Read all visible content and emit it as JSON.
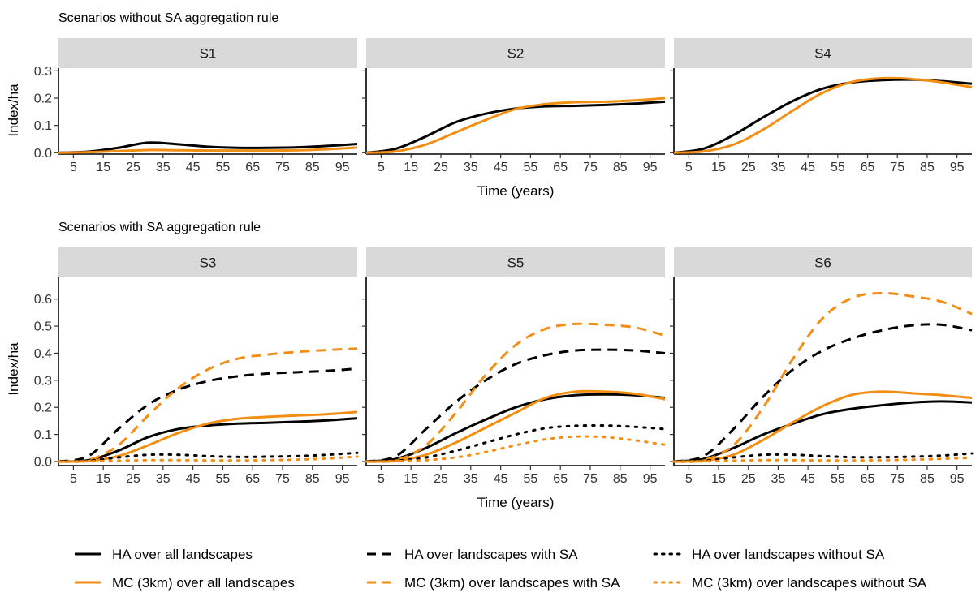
{
  "colors": {
    "ha": "#000000",
    "mc": "#f28e13",
    "strip": "#d9d9d9",
    "text": "#000000",
    "tick": "#333333"
  },
  "sections": [
    {
      "title": "Scenarios without SA aggregation rule",
      "ylabel": "Index/ha",
      "xlabel": "Time (years)"
    },
    {
      "title": "Scenarios with SA aggregation rule",
      "ylabel": "Index/ha",
      "xlabel": "Time (years)"
    }
  ],
  "legend": [
    {
      "label": "HA over all landscapes",
      "color": "#000000",
      "dash": "solid"
    },
    {
      "label": "HA over landscapes with SA",
      "color": "#000000",
      "dash": "dashed"
    },
    {
      "label": "HA over landscapes without SA",
      "color": "#000000",
      "dash": "dotted"
    },
    {
      "label": "MC (3km) over all landscapes",
      "color": "#f28e13",
      "dash": "solid"
    },
    {
      "label": "MC (3km) over landscapes with SA",
      "color": "#f28e13",
      "dash": "dashed"
    },
    {
      "label": "MC (3km) over landscapes without SA",
      "color": "#f28e13",
      "dash": "dotted"
    }
  ],
  "chart_data": [
    {
      "type": "line",
      "panel": "S1",
      "section": 0,
      "x": [
        0,
        10,
        20,
        30,
        40,
        50,
        60,
        70,
        80,
        90,
        100
      ],
      "xticks": [
        5,
        15,
        25,
        35,
        45,
        55,
        65,
        75,
        85,
        95
      ],
      "xlim": [
        0,
        100
      ],
      "yticks": [
        0.0,
        0.1,
        0.2,
        0.3
      ],
      "ylim": [
        -0.005,
        0.31
      ],
      "series": [
        {
          "name": "HA over all landscapes",
          "color": "#000000",
          "dash": "solid",
          "values": [
            0,
            0.004,
            0.018,
            0.037,
            0.031,
            0.022,
            0.018,
            0.018,
            0.02,
            0.025,
            0.032
          ]
        },
        {
          "name": "MC (3km) over all landscapes",
          "color": "#f28e13",
          "dash": "solid",
          "values": [
            0,
            0.002,
            0.006,
            0.01,
            0.009,
            0.008,
            0.008,
            0.008,
            0.009,
            0.013,
            0.019
          ]
        }
      ]
    },
    {
      "type": "line",
      "panel": "S2",
      "section": 0,
      "x": [
        0,
        10,
        20,
        30,
        40,
        50,
        60,
        70,
        80,
        90,
        100
      ],
      "xticks": [
        5,
        15,
        25,
        35,
        45,
        55,
        65,
        75,
        85,
        95
      ],
      "xlim": [
        0,
        100
      ],
      "yticks": [
        0.0,
        0.1,
        0.2,
        0.3
      ],
      "ylim": [
        -0.005,
        0.31
      ],
      "series": [
        {
          "name": "HA over all landscapes",
          "color": "#000000",
          "dash": "solid",
          "values": [
            0,
            0.015,
            0.06,
            0.112,
            0.143,
            0.162,
            0.17,
            0.172,
            0.175,
            0.18,
            0.187
          ]
        },
        {
          "name": "MC (3km) over all landscapes",
          "color": "#f28e13",
          "dash": "solid",
          "values": [
            0,
            0.005,
            0.03,
            0.075,
            0.12,
            0.16,
            0.178,
            0.185,
            0.187,
            0.192,
            0.2
          ]
        }
      ]
    },
    {
      "type": "line",
      "panel": "S4",
      "section": 0,
      "x": [
        0,
        10,
        20,
        30,
        40,
        50,
        60,
        70,
        80,
        90,
        100
      ],
      "xticks": [
        5,
        15,
        25,
        35,
        45,
        55,
        65,
        75,
        85,
        95
      ],
      "xlim": [
        0,
        100
      ],
      "yticks": [
        0.0,
        0.1,
        0.2,
        0.3
      ],
      "ylim": [
        -0.005,
        0.31
      ],
      "series": [
        {
          "name": "HA over all landscapes",
          "color": "#000000",
          "dash": "solid",
          "values": [
            0,
            0.015,
            0.065,
            0.13,
            0.19,
            0.235,
            0.258,
            0.266,
            0.268,
            0.262,
            0.253
          ]
        },
        {
          "name": "MC (3km) over all landscapes",
          "color": "#f28e13",
          "dash": "solid",
          "values": [
            0,
            0.005,
            0.03,
            0.085,
            0.155,
            0.22,
            0.26,
            0.273,
            0.27,
            0.258,
            0.24
          ]
        }
      ]
    },
    {
      "type": "line",
      "panel": "S3",
      "section": 1,
      "x": [
        0,
        10,
        20,
        30,
        40,
        50,
        60,
        70,
        80,
        90,
        100
      ],
      "xticks": [
        5,
        15,
        25,
        35,
        45,
        55,
        65,
        75,
        85,
        95
      ],
      "xlim": [
        0,
        100
      ],
      "yticks": [
        0.0,
        0.1,
        0.2,
        0.3,
        0.4,
        0.5,
        0.6
      ],
      "ylim": [
        -0.015,
        0.68
      ],
      "series": [
        {
          "name": "HA over all landscapes",
          "color": "#000000",
          "dash": "solid",
          "values": [
            0,
            0.005,
            0.04,
            0.09,
            0.12,
            0.133,
            0.14,
            0.143,
            0.147,
            0.152,
            0.16
          ]
        },
        {
          "name": "MC (3km) over all landscapes",
          "color": "#f28e13",
          "dash": "solid",
          "values": [
            0,
            0.002,
            0.02,
            0.06,
            0.105,
            0.14,
            0.158,
            0.165,
            0.17,
            0.175,
            0.183
          ]
        },
        {
          "name": "HA over landscapes with SA",
          "color": "#000000",
          "dash": "dashed",
          "values": [
            0,
            0.02,
            0.12,
            0.21,
            0.265,
            0.297,
            0.315,
            0.325,
            0.33,
            0.335,
            0.343
          ]
        },
        {
          "name": "MC (3km) over landscapes with SA",
          "color": "#f28e13",
          "dash": "dashed",
          "values": [
            0,
            0.005,
            0.06,
            0.17,
            0.27,
            0.34,
            0.38,
            0.395,
            0.405,
            0.412,
            0.417
          ]
        },
        {
          "name": "HA over landscapes without SA",
          "color": "#000000",
          "dash": "dotted",
          "values": [
            0,
            0.003,
            0.015,
            0.025,
            0.025,
            0.02,
            0.017,
            0.018,
            0.02,
            0.025,
            0.032
          ]
        },
        {
          "name": "MC (3km) over landscapes without SA",
          "color": "#f28e13",
          "dash": "dotted",
          "values": [
            0,
            0.001,
            0.003,
            0.005,
            0.005,
            0.004,
            0.004,
            0.005,
            0.007,
            0.011,
            0.018
          ]
        }
      ]
    },
    {
      "type": "line",
      "panel": "S5",
      "section": 1,
      "x": [
        0,
        10,
        20,
        30,
        40,
        50,
        60,
        70,
        80,
        90,
        100
      ],
      "xticks": [
        5,
        15,
        25,
        35,
        45,
        55,
        65,
        75,
        85,
        95
      ],
      "xlim": [
        0,
        100
      ],
      "yticks": [
        0.0,
        0.1,
        0.2,
        0.3,
        0.4,
        0.5,
        0.6
      ],
      "ylim": [
        -0.015,
        0.68
      ],
      "series": [
        {
          "name": "HA over all landscapes",
          "color": "#000000",
          "dash": "solid",
          "values": [
            0,
            0.01,
            0.05,
            0.105,
            0.155,
            0.2,
            0.23,
            0.245,
            0.248,
            0.245,
            0.235
          ]
        },
        {
          "name": "MC (3km) over all landscapes",
          "color": "#f28e13",
          "dash": "solid",
          "values": [
            0,
            0.003,
            0.025,
            0.07,
            0.125,
            0.18,
            0.235,
            0.258,
            0.258,
            0.25,
            0.23
          ]
        },
        {
          "name": "HA over landscapes with SA",
          "color": "#000000",
          "dash": "dashed",
          "values": [
            0,
            0.02,
            0.12,
            0.22,
            0.3,
            0.36,
            0.393,
            0.41,
            0.413,
            0.41,
            0.4
          ]
        },
        {
          "name": "MC (3km) over landscapes with SA",
          "color": "#f28e13",
          "dash": "dashed",
          "values": [
            0,
            0.005,
            0.06,
            0.18,
            0.32,
            0.43,
            0.49,
            0.508,
            0.505,
            0.495,
            0.465
          ]
        },
        {
          "name": "HA over landscapes without SA",
          "color": "#000000",
          "dash": "dotted",
          "values": [
            0,
            0.003,
            0.015,
            0.04,
            0.07,
            0.1,
            0.123,
            0.132,
            0.133,
            0.128,
            0.12
          ]
        },
        {
          "name": "MC (3km) over landscapes without SA",
          "color": "#f28e13",
          "dash": "dotted",
          "values": [
            0,
            0.001,
            0.005,
            0.015,
            0.035,
            0.06,
            0.082,
            0.092,
            0.09,
            0.078,
            0.062
          ]
        }
      ]
    },
    {
      "type": "line",
      "panel": "S6",
      "section": 1,
      "x": [
        0,
        10,
        20,
        30,
        40,
        50,
        60,
        70,
        80,
        90,
        100
      ],
      "xticks": [
        5,
        15,
        25,
        35,
        45,
        55,
        65,
        75,
        85,
        95
      ],
      "xlim": [
        0,
        100
      ],
      "yticks": [
        0.0,
        0.1,
        0.2,
        0.3,
        0.4,
        0.5,
        0.6
      ],
      "ylim": [
        -0.015,
        0.68
      ],
      "series": [
        {
          "name": "HA over all landscapes",
          "color": "#000000",
          "dash": "solid",
          "values": [
            0,
            0.01,
            0.05,
            0.1,
            0.14,
            0.175,
            0.195,
            0.208,
            0.218,
            0.222,
            0.218
          ]
        },
        {
          "name": "MC (3km) over all landscapes",
          "color": "#f28e13",
          "dash": "solid",
          "values": [
            0,
            0.003,
            0.025,
            0.08,
            0.145,
            0.205,
            0.247,
            0.258,
            0.252,
            0.245,
            0.235
          ]
        },
        {
          "name": "HA over landscapes with SA",
          "color": "#000000",
          "dash": "dashed",
          "values": [
            0,
            0.02,
            0.12,
            0.24,
            0.34,
            0.41,
            0.455,
            0.485,
            0.503,
            0.505,
            0.485
          ]
        },
        {
          "name": "MC (3km) over landscapes with SA",
          "color": "#f28e13",
          "dash": "dashed",
          "values": [
            0,
            0.005,
            0.06,
            0.2,
            0.38,
            0.53,
            0.605,
            0.622,
            0.61,
            0.59,
            0.545
          ]
        },
        {
          "name": "HA over landscapes without SA",
          "color": "#000000",
          "dash": "dotted",
          "values": [
            0,
            0.003,
            0.015,
            0.025,
            0.025,
            0.02,
            0.016,
            0.016,
            0.018,
            0.022,
            0.03
          ]
        },
        {
          "name": "MC (3km) over landscapes without SA",
          "color": "#f28e13",
          "dash": "dotted",
          "values": [
            0,
            0.001,
            0.003,
            0.005,
            0.005,
            0.004,
            0.004,
            0.005,
            0.007,
            0.01,
            0.014
          ]
        }
      ]
    }
  ]
}
